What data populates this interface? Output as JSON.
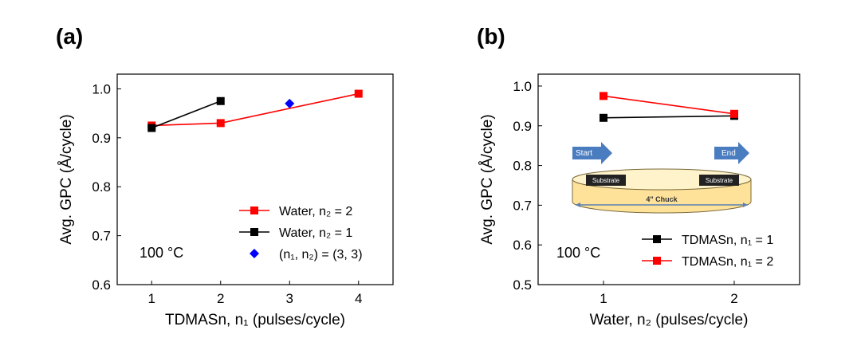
{
  "chart_data": [
    {
      "type": "line",
      "panel": "(a)",
      "xlabel": "TDMASn, n₁ (pulses/cycle)",
      "ylabel": "Avg. GPC (Å/cycle)",
      "annotation": "100 °C",
      "xlim": [
        0.5,
        4.5
      ],
      "xticks": [
        1,
        2,
        3,
        4
      ],
      "ylim": [
        0.6,
        1.03
      ],
      "yticks": [
        {
          "value": 0.6,
          "label": "0.6"
        },
        {
          "value": 0.7,
          "label": "0.7"
        },
        {
          "value": 0.8,
          "label": "0.8"
        },
        {
          "value": 0.9,
          "label": "0.9"
        },
        {
          "value": 1.0,
          "label": "1.0"
        }
      ],
      "legend": "lower right",
      "series": [
        {
          "name": "Water, n₂ = 2",
          "color": "#ff0000",
          "marker": "square",
          "line": true,
          "x": [
            1,
            2,
            4
          ],
          "values": [
            0.925,
            0.93,
            0.99
          ]
        },
        {
          "name": "Water, n₂ = 1",
          "color": "#000000",
          "marker": "square",
          "line": true,
          "x": [
            1,
            2
          ],
          "values": [
            0.92,
            0.975
          ]
        },
        {
          "name": "(n₁, n₂) = (3, 3)",
          "color": "#0000ff",
          "marker": "diamond",
          "line": false,
          "x": [
            3
          ],
          "values": [
            0.97
          ]
        }
      ]
    },
    {
      "type": "line",
      "panel": "(b)",
      "xlabel": "Water, n₂ (pulses/cycle)",
      "ylabel": "Avg. GPC (Å/cycle)",
      "annotation": "100 °C",
      "xlim": [
        0.5,
        2.5
      ],
      "xticks": [
        1,
        2
      ],
      "ylim": [
        0.5,
        1.03
      ],
      "yticks": [
        {
          "value": 0.5,
          "label": "0.5"
        },
        {
          "value": 0.6,
          "label": "0.6"
        },
        {
          "value": 0.7,
          "label": "0.7"
        },
        {
          "value": 0.8,
          "label": "0.8"
        },
        {
          "value": 0.9,
          "label": "0.9"
        },
        {
          "value": 1.0,
          "label": "1.0"
        }
      ],
      "legend": "lower right",
      "series": [
        {
          "name": "TDMASn, n₁ = 1",
          "color": "#000000",
          "marker": "square",
          "line": true,
          "x": [
            1,
            2
          ],
          "values": [
            0.92,
            0.925
          ]
        },
        {
          "name": "TDMASn, n₁ = 2",
          "color": "#ff0000",
          "marker": "square",
          "line": true,
          "x": [
            1,
            2
          ],
          "values": [
            0.975,
            0.93
          ]
        }
      ],
      "inset": {
        "start": "Start",
        "end": "End",
        "substrate_left": "Substrate",
        "substrate_right": "Substrate",
        "chuck": "4\" Chuck"
      }
    }
  ]
}
